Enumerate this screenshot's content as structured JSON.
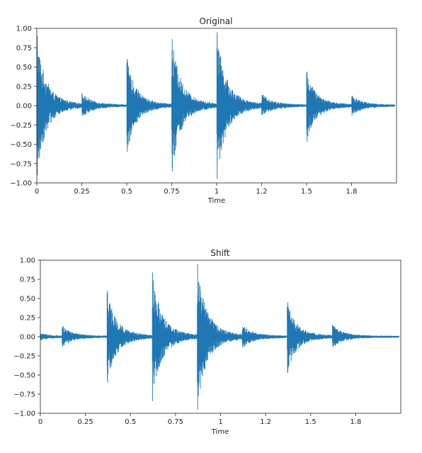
{
  "chart_data": [
    {
      "type": "line",
      "title": "Original",
      "xlabel": "Time",
      "ylabel": "",
      "xlim": [
        0,
        2.0
      ],
      "ylim": [
        -1.0,
        1.0
      ],
      "x_ticks": [
        0,
        0.25,
        0.5,
        0.75,
        1.0,
        1.25,
        1.5,
        1.75
      ],
      "x_tick_labels": [
        "0",
        "0.25",
        "0.5",
        "0.75",
        "1",
        "1.2",
        "1.5",
        "1.8"
      ],
      "y_ticks": [
        1.0,
        0.75,
        0.5,
        0.25,
        0.0,
        -0.25,
        -0.5,
        -0.75,
        -1.0
      ],
      "y_tick_labels": [
        "1.00",
        "0.75",
        "0.50",
        "0.25",
        "0.00",
        "−0.25",
        "−0.50",
        "−0.75",
        "−1.00"
      ],
      "grid": false,
      "series_color": "#1f77b4",
      "onsets": [
        {
          "t": 0.0,
          "amp_pos": 0.9,
          "amp_neg": 0.9
        },
        {
          "t": 0.25,
          "amp_pos": 0.14,
          "amp_neg": 0.13
        },
        {
          "t": 0.5,
          "amp_pos": 0.6,
          "amp_neg": 0.6
        },
        {
          "t": 0.75,
          "amp_pos": 0.86,
          "amp_neg": 0.85
        },
        {
          "t": 1.0,
          "amp_pos": 0.95,
          "amp_neg": 0.95
        },
        {
          "t": 1.25,
          "amp_pos": 0.13,
          "amp_neg": 0.12
        },
        {
          "t": 1.5,
          "amp_pos": 0.44,
          "amp_neg": 0.47
        },
        {
          "t": 1.75,
          "amp_pos": 0.13,
          "amp_neg": 0.12
        }
      ]
    },
    {
      "type": "line",
      "title": "Shift",
      "xlabel": "Time",
      "ylabel": "",
      "xlim": [
        0,
        2.0
      ],
      "ylim": [
        -1.0,
        1.0
      ],
      "x_ticks": [
        0,
        0.25,
        0.5,
        0.75,
        1.0,
        1.25,
        1.5,
        1.75
      ],
      "x_tick_labels": [
        "0",
        "0.25",
        "0.5",
        "0.75",
        "1",
        "1.2",
        "1.5",
        "1.8"
      ],
      "y_ticks": [
        1.0,
        0.75,
        0.5,
        0.25,
        0.0,
        -0.25,
        -0.5,
        -0.75,
        -1.0
      ],
      "y_tick_labels": [
        "1.00",
        "0.75",
        "0.50",
        "0.25",
        "0.00",
        "−0.25",
        "−0.50",
        "−0.75",
        "−1.00"
      ],
      "grid": false,
      "series_color": "#1f77b4",
      "onsets": [
        {
          "t": 0.0,
          "amp_pos": 0.04,
          "amp_neg": 0.04
        },
        {
          "t": 0.12,
          "amp_pos": 0.14,
          "amp_neg": 0.13
        },
        {
          "t": 0.37,
          "amp_pos": 0.6,
          "amp_neg": 0.6
        },
        {
          "t": 0.62,
          "amp_pos": 0.84,
          "amp_neg": 0.84
        },
        {
          "t": 0.87,
          "amp_pos": 0.95,
          "amp_neg": 0.95
        },
        {
          "t": 1.12,
          "amp_pos": 0.13,
          "amp_neg": 0.12
        },
        {
          "t": 1.37,
          "amp_pos": 0.45,
          "amp_neg": 0.47
        },
        {
          "t": 1.62,
          "amp_pos": 0.14,
          "amp_neg": 0.13
        }
      ]
    }
  ]
}
